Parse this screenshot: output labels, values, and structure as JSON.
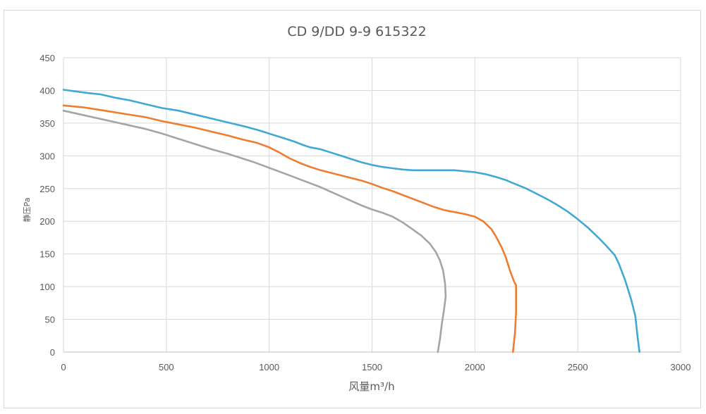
{
  "chart_data": {
    "type": "line",
    "title": "CD 9/DD 9-9  615322",
    "xlabel": "风量m³/h",
    "ylabel": "静压Pa",
    "xlim": [
      0,
      3000
    ],
    "ylim": [
      0,
      450
    ],
    "x_ticks": [
      0,
      500,
      1000,
      1500,
      2000,
      2500,
      3000
    ],
    "y_ticks": [
      0,
      50,
      100,
      150,
      200,
      250,
      300,
      350,
      400,
      450
    ],
    "x_tick_labels": [
      "0",
      "500",
      "1000",
      "1500",
      "2000",
      "2500",
      "3000"
    ],
    "y_tick_labels": [
      "0",
      "50",
      "100",
      "150",
      "200",
      "250",
      "300",
      "350",
      "400",
      "450"
    ],
    "grid": true,
    "legend": "none",
    "series": [
      {
        "name": "curve-blue",
        "color": "#41a8d6",
        "points": [
          [
            0,
            401
          ],
          [
            120,
            396
          ],
          [
            180,
            394
          ],
          [
            250,
            389
          ],
          [
            320,
            385
          ],
          [
            400,
            379
          ],
          [
            480,
            373
          ],
          [
            560,
            369
          ],
          [
            640,
            363
          ],
          [
            720,
            357
          ],
          [
            800,
            351
          ],
          [
            880,
            345
          ],
          [
            950,
            339
          ],
          [
            1000,
            334
          ],
          [
            1060,
            328
          ],
          [
            1120,
            322
          ],
          [
            1170,
            316
          ],
          [
            1200,
            313
          ],
          [
            1250,
            310
          ],
          [
            1300,
            305
          ],
          [
            1350,
            300
          ],
          [
            1400,
            295
          ],
          [
            1450,
            290
          ],
          [
            1500,
            286
          ],
          [
            1550,
            283
          ],
          [
            1600,
            281
          ],
          [
            1650,
            279
          ],
          [
            1700,
            278
          ],
          [
            1800,
            278
          ],
          [
            1900,
            278
          ],
          [
            2000,
            275
          ],
          [
            2050,
            272
          ],
          [
            2100,
            268
          ],
          [
            2150,
            263
          ],
          [
            2180,
            259
          ],
          [
            2250,
            250
          ],
          [
            2300,
            242
          ],
          [
            2350,
            234
          ],
          [
            2400,
            225
          ],
          [
            2450,
            215
          ],
          [
            2500,
            203
          ],
          [
            2550,
            190
          ],
          [
            2600,
            175
          ],
          [
            2640,
            162
          ],
          [
            2680,
            148
          ],
          [
            2700,
            135
          ],
          [
            2730,
            110
          ],
          [
            2760,
            80
          ],
          [
            2780,
            55
          ],
          [
            2790,
            25
          ],
          [
            2800,
            0
          ]
        ]
      },
      {
        "name": "curve-orange",
        "color": "#ed7d31",
        "points": [
          [
            0,
            377
          ],
          [
            100,
            374
          ],
          [
            200,
            369
          ],
          [
            300,
            364
          ],
          [
            400,
            359
          ],
          [
            480,
            353
          ],
          [
            560,
            348
          ],
          [
            640,
            343
          ],
          [
            720,
            337
          ],
          [
            800,
            331
          ],
          [
            870,
            325
          ],
          [
            940,
            320
          ],
          [
            1000,
            313
          ],
          [
            1050,
            305
          ],
          [
            1100,
            296
          ],
          [
            1150,
            289
          ],
          [
            1200,
            283
          ],
          [
            1250,
            278
          ],
          [
            1300,
            274
          ],
          [
            1350,
            270
          ],
          [
            1400,
            266
          ],
          [
            1450,
            262
          ],
          [
            1500,
            257
          ],
          [
            1550,
            251
          ],
          [
            1600,
            246
          ],
          [
            1650,
            240
          ],
          [
            1700,
            234
          ],
          [
            1750,
            228
          ],
          [
            1800,
            222
          ],
          [
            1850,
            217
          ],
          [
            1900,
            214
          ],
          [
            1950,
            211
          ],
          [
            2000,
            207
          ],
          [
            2040,
            200
          ],
          [
            2080,
            188
          ],
          [
            2100,
            178
          ],
          [
            2130,
            160
          ],
          [
            2150,
            145
          ],
          [
            2170,
            125
          ],
          [
            2190,
            108
          ],
          [
            2200,
            102
          ],
          [
            2200,
            60
          ],
          [
            2195,
            30
          ],
          [
            2185,
            0
          ]
        ]
      },
      {
        "name": "curve-gray",
        "color": "#a5a5a5",
        "points": [
          [
            0,
            369
          ],
          [
            100,
            362
          ],
          [
            200,
            355
          ],
          [
            300,
            348
          ],
          [
            400,
            341
          ],
          [
            480,
            334
          ],
          [
            560,
            326
          ],
          [
            640,
            318
          ],
          [
            720,
            310
          ],
          [
            800,
            303
          ],
          [
            860,
            297
          ],
          [
            920,
            291
          ],
          [
            980,
            284
          ],
          [
            1040,
            277
          ],
          [
            1100,
            270
          ],
          [
            1150,
            264
          ],
          [
            1200,
            258
          ],
          [
            1250,
            252
          ],
          [
            1300,
            245
          ],
          [
            1350,
            238
          ],
          [
            1400,
            231
          ],
          [
            1450,
            224
          ],
          [
            1500,
            218
          ],
          [
            1550,
            213
          ],
          [
            1600,
            207
          ],
          [
            1650,
            198
          ],
          [
            1700,
            187
          ],
          [
            1740,
            178
          ],
          [
            1780,
            166
          ],
          [
            1810,
            153
          ],
          [
            1830,
            140
          ],
          [
            1845,
            125
          ],
          [
            1855,
            105
          ],
          [
            1858,
            85
          ],
          [
            1850,
            65
          ],
          [
            1840,
            45
          ],
          [
            1830,
            20
          ],
          [
            1820,
            0
          ]
        ]
      }
    ]
  }
}
